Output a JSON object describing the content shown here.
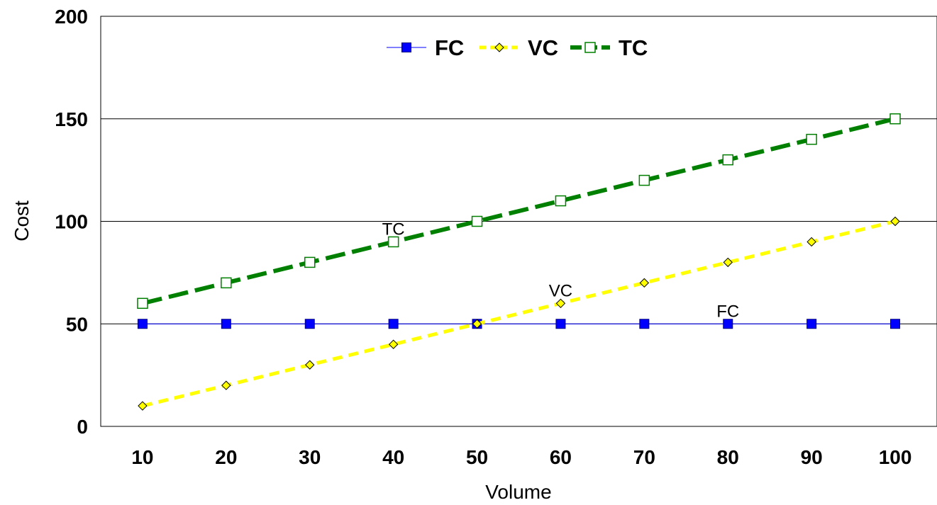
{
  "chart_data": {
    "type": "line",
    "xlabel": "Volume",
    "ylabel": "Cost",
    "ylim": [
      0,
      200
    ],
    "yticks": [
      "0",
      "50",
      "100",
      "150",
      "200"
    ],
    "categories": [
      "10",
      "20",
      "30",
      "40",
      "50",
      "60",
      "70",
      "80",
      "90",
      "100"
    ],
    "grid": "horizontal",
    "legend_placement": "top-center",
    "series": [
      {
        "name": "FC",
        "values": [
          50,
          50,
          50,
          50,
          50,
          50,
          50,
          50,
          50,
          50
        ],
        "color": "#0000ff",
        "style": "solid",
        "marker": "filled-square"
      },
      {
        "name": "VC",
        "values": [
          10,
          20,
          30,
          40,
          50,
          60,
          70,
          80,
          90,
          100
        ],
        "color": "#ffff00",
        "style": "dashed",
        "marker": "diamond"
      },
      {
        "name": "TC",
        "values": [
          60,
          70,
          80,
          90,
          100,
          110,
          120,
          130,
          140,
          150
        ],
        "color": "#008000",
        "style": "dashed",
        "marker": "open-square"
      }
    ],
    "annotations": [
      {
        "text": "TC",
        "x": "40",
        "y": 90
      },
      {
        "text": "VC",
        "x": "60",
        "y": 60
      },
      {
        "text": "FC",
        "x": "80",
        "y": 50
      }
    ]
  }
}
